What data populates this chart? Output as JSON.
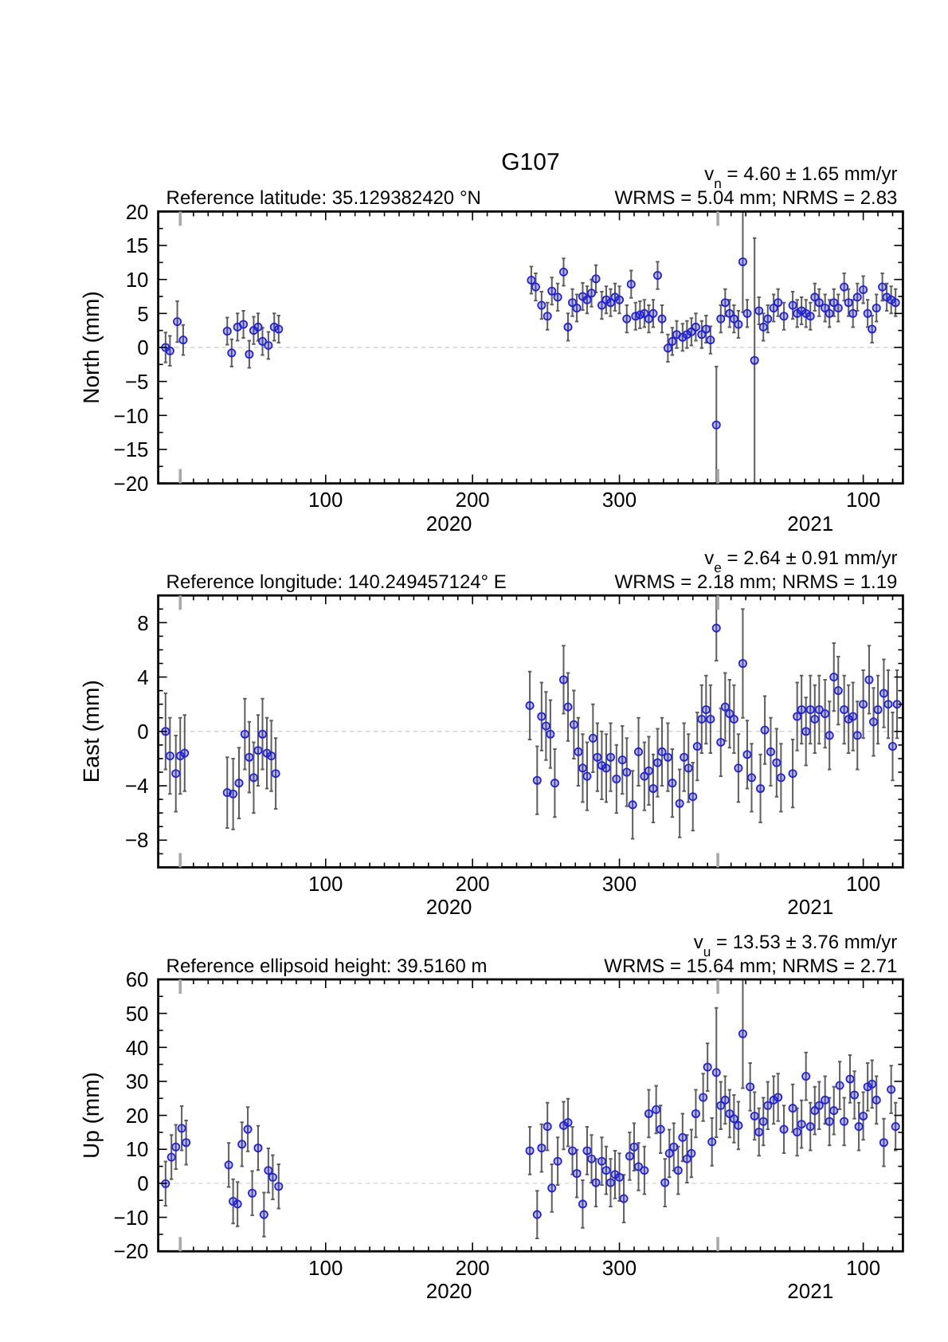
{
  "chart_data": [
    {
      "type": "scatter",
      "title": "G107",
      "subtitle": "Reference latitude: 35.129382420 °N",
      "annotations": [
        "v$_{n}$ = 4.60 ± 1.65 mm/yr",
        "WRMS = 5.04 mm; NRMS = 2.83",
        "2020",
        "2021"
      ],
      "ylabel": "North (mm)",
      "marker": "circle",
      "xlim": [
        "2019-12-17",
        "2021-05-07"
      ],
      "xticks": [
        {
          "value": "2020-01-01",
          "label": null
        },
        {
          "value": "2020-01-10",
          "label": null
        },
        {
          "value": "2020-01-20",
          "label": null
        },
        {
          "value": "2020-01-30",
          "label": null
        },
        {
          "value": "2020-02-09",
          "label": null
        },
        {
          "value": "2020-02-19",
          "label": null
        },
        {
          "value": "2020-02-29",
          "label": null
        },
        {
          "value": "2020-03-10",
          "label": null
        },
        {
          "value": "2020-03-20",
          "label": null
        },
        {
          "value": "2020-03-30",
          "label": null
        },
        {
          "value": "2020-04-09",
          "label": "100"
        },
        {
          "value": "2020-04-19",
          "label": null
        },
        {
          "value": "2020-04-29",
          "label": null
        },
        {
          "value": "2020-05-09",
          "label": null
        },
        {
          "value": "2020-05-19",
          "label": null
        },
        {
          "value": "2020-05-29",
          "label": null
        },
        {
          "value": "2020-06-08",
          "label": null
        },
        {
          "value": "2020-06-18",
          "label": null
        },
        {
          "value": "2020-06-28",
          "label": null
        },
        {
          "value": "2020-07-08",
          "label": null
        },
        {
          "value": "2020-07-18",
          "label": "200"
        },
        {
          "value": "2020-07-28",
          "label": null
        },
        {
          "value": "2020-08-07",
          "label": null
        },
        {
          "value": "2020-08-17",
          "label": null
        },
        {
          "value": "2020-08-27",
          "label": null
        },
        {
          "value": "2020-09-06",
          "label": null
        },
        {
          "value": "2020-09-16",
          "label": null
        },
        {
          "value": "2020-09-26",
          "label": null
        },
        {
          "value": "2020-10-06",
          "label": null
        },
        {
          "value": "2020-10-16",
          "label": null
        },
        {
          "value": "2020-10-26",
          "label": "300"
        },
        {
          "value": "2020-11-05",
          "label": null
        },
        {
          "value": "2020-11-15",
          "label": null
        },
        {
          "value": "2020-11-25",
          "label": null
        },
        {
          "value": "2020-12-05",
          "label": null
        },
        {
          "value": "2020-12-15",
          "label": null
        },
        {
          "value": "2020-12-25",
          "label": null
        },
        {
          "value": "2021-01-01",
          "label": null
        },
        {
          "value": "2021-01-10",
          "label": null
        },
        {
          "value": "2021-01-20",
          "label": null
        },
        {
          "value": "2021-01-30",
          "label": null
        },
        {
          "value": "2021-02-09",
          "label": null
        },
        {
          "value": "2021-02-19",
          "label": null
        },
        {
          "value": "2021-03-01",
          "label": null
        },
        {
          "value": "2021-03-11",
          "label": null
        },
        {
          "value": "2021-03-21",
          "label": null
        },
        {
          "value": "2021-03-31",
          "label": null
        },
        {
          "value": "2021-04-10",
          "label": "100"
        },
        {
          "value": "2021-04-20",
          "label": null
        },
        {
          "value": "2021-04-30",
          "label": null
        }
      ],
      "ylim": [
        -20,
        20
      ],
      "yticks": [
        -20,
        {
          "value": -17.5,
          "label": null
        },
        -15,
        {
          "value": -12.5,
          "label": null
        },
        -10,
        {
          "value": -7.5,
          "label": null
        },
        -5,
        {
          "value": -2.5,
          "label": null
        },
        0,
        {
          "value": 2.5,
          "label": null
        },
        5,
        {
          "value": 7.5,
          "label": null
        },
        10,
        {
          "value": 12.5,
          "label": null
        },
        15,
        {
          "value": 17.5,
          "label": null
        },
        20
      ],
      "ref_lines": [
        {
          "axis": "y",
          "value": 0,
          "color": "#d4d4d4",
          "line_style": "dashed"
        }
      ],
      "series": [
        {
          "color": "#1f1fe0",
          "x": [
            "2019-12-22",
            "2019-12-25",
            "2019-12-30",
            "2020-01-03",
            "2020-02-02",
            "2020-02-05",
            "2020-02-09",
            "2020-02-13",
            "2020-02-17",
            "2020-02-20",
            "2020-02-23",
            "2020-02-26",
            "2020-03-01",
            "2020-03-05",
            "2020-03-08",
            "2020-08-27",
            "2020-08-30",
            "2020-09-03",
            "2020-09-07",
            "2020-09-10",
            "2020-09-14",
            "2020-09-18",
            "2020-09-21",
            "2020-09-24",
            "2020-09-27",
            "2020-10-01",
            "2020-10-04",
            "2020-10-07",
            "2020-10-10",
            "2020-10-14",
            "2020-10-17",
            "2020-10-20",
            "2020-10-23",
            "2020-10-26",
            "2020-10-31",
            "2020-11-03",
            "2020-11-06",
            "2020-11-09",
            "2020-11-12",
            "2020-11-15",
            "2020-11-18",
            "2020-11-21",
            "2020-11-24",
            "2020-11-28",
            "2020-12-01",
            "2020-12-04",
            "2020-12-08",
            "2020-12-11",
            "2020-12-14",
            "2020-12-17",
            "2020-12-21",
            "2020-12-24",
            "2020-12-27",
            "2020-12-31",
            "2021-01-03",
            "2021-01-06",
            "2021-01-09",
            "2021-01-12",
            "2021-01-15",
            "2021-01-18",
            "2021-01-21",
            "2021-01-26",
            "2021-01-29",
            "2021-02-01",
            "2021-02-04",
            "2021-02-08",
            "2021-02-11",
            "2021-02-15",
            "2021-02-21",
            "2021-02-24",
            "2021-02-27",
            "2021-03-02",
            "2021-03-05",
            "2021-03-08",
            "2021-03-11",
            "2021-03-15",
            "2021-03-18",
            "2021-03-21",
            "2021-03-24",
            "2021-03-28",
            "2021-03-31",
            "2021-04-03",
            "2021-04-06",
            "2021-04-10",
            "2021-04-13",
            "2021-04-16",
            "2021-04-19",
            "2021-04-23",
            "2021-04-26",
            "2021-04-29",
            "2021-05-02"
          ],
          "values": [
            0,
            -0.5,
            3.8,
            1.1,
            2.4,
            -0.8,
            3,
            3.4,
            -1,
            2.5,
            3,
            0.9,
            0.3,
            3,
            2.7,
            9.9,
            8.9,
            6.2,
            4.6,
            8.3,
            7.4,
            11.1,
            3,
            6.6,
            5.8,
            7.5,
            7,
            8,
            10.1,
            6.2,
            7,
            6.6,
            7.4,
            7,
            4.2,
            9.3,
            4.6,
            4.8,
            5,
            4.2,
            5,
            10.6,
            4.2,
            -0.1,
            0.9,
            1.9,
            1.5,
            1.9,
            2.3,
            3,
            1.9,
            2.7,
            1.1,
            -11.4,
            4.2,
            6.6,
            5,
            4.2,
            3.4,
            12.6,
            5,
            -1.9,
            5.4,
            3,
            4.2,
            5.8,
            6.6,
            4.6,
            6.2,
            5,
            5.4,
            5,
            4.6,
            7.4,
            6.6,
            5.8,
            5,
            6.6,
            5.8,
            8.9,
            6.6,
            5,
            7.4,
            8.5,
            5,
            2.7,
            5.8,
            8.9,
            7.4,
            7,
            6.6
          ],
          "errors": [
            2.2,
            2.2,
            3,
            2.2,
            2,
            2,
            2,
            2,
            2,
            2,
            2,
            2,
            2,
            2,
            2,
            2,
            2,
            2,
            2,
            2,
            2,
            2,
            2,
            2,
            2,
            2,
            2,
            2,
            2,
            2,
            2,
            2,
            2,
            2,
            2,
            2,
            2,
            2,
            2,
            2,
            2,
            2,
            2,
            2,
            2,
            2,
            2,
            2,
            2,
            2,
            2,
            2,
            2,
            8.6,
            2,
            2,
            2,
            2,
            2,
            7.4,
            2,
            18,
            2,
            2,
            2,
            2,
            2,
            2,
            2,
            2,
            2,
            2,
            2,
            2,
            2,
            2,
            2,
            2,
            2,
            2,
            2,
            2,
            2,
            2,
            2,
            2,
            2,
            2,
            2,
            2,
            2
          ]
        }
      ]
    },
    {
      "type": "scatter",
      "subtitle": "Reference longitude: 140.249457124° E",
      "annotations": [
        "v$_{e}$ = 2.64 ± 0.91 mm/yr",
        "WRMS = 2.18 mm; NRMS = 1.19",
        "2020",
        "2021"
      ],
      "ylabel": "East (mm)",
      "marker": "circle",
      "xlim": [
        "2019-12-17",
        "2021-05-07"
      ],
      "xticks": [
        {
          "value": "2020-01-01",
          "label": null
        },
        {
          "value": "2020-01-10",
          "label": null
        },
        {
          "value": "2020-01-20",
          "label": null
        },
        {
          "value": "2020-01-30",
          "label": null
        },
        {
          "value": "2020-02-09",
          "label": null
        },
        {
          "value": "2020-02-19",
          "label": null
        },
        {
          "value": "2020-02-29",
          "label": null
        },
        {
          "value": "2020-03-10",
          "label": null
        },
        {
          "value": "2020-03-20",
          "label": null
        },
        {
          "value": "2020-03-30",
          "label": null
        },
        {
          "value": "2020-04-09",
          "label": "100"
        },
        {
          "value": "2020-04-19",
          "label": null
        },
        {
          "value": "2020-04-29",
          "label": null
        },
        {
          "value": "2020-05-09",
          "label": null
        },
        {
          "value": "2020-05-19",
          "label": null
        },
        {
          "value": "2020-05-29",
          "label": null
        },
        {
          "value": "2020-06-08",
          "label": null
        },
        {
          "value": "2020-06-18",
          "label": null
        },
        {
          "value": "2020-06-28",
          "label": null
        },
        {
          "value": "2020-07-08",
          "label": null
        },
        {
          "value": "2020-07-18",
          "label": "200"
        },
        {
          "value": "2020-07-28",
          "label": null
        },
        {
          "value": "2020-08-07",
          "label": null
        },
        {
          "value": "2020-08-17",
          "label": null
        },
        {
          "value": "2020-08-27",
          "label": null
        },
        {
          "value": "2020-09-06",
          "label": null
        },
        {
          "value": "2020-09-16",
          "label": null
        },
        {
          "value": "2020-09-26",
          "label": null
        },
        {
          "value": "2020-10-06",
          "label": null
        },
        {
          "value": "2020-10-16",
          "label": null
        },
        {
          "value": "2020-10-26",
          "label": "300"
        },
        {
          "value": "2020-11-05",
          "label": null
        },
        {
          "value": "2020-11-15",
          "label": null
        },
        {
          "value": "2020-11-25",
          "label": null
        },
        {
          "value": "2020-12-05",
          "label": null
        },
        {
          "value": "2020-12-15",
          "label": null
        },
        {
          "value": "2020-12-25",
          "label": null
        },
        {
          "value": "2021-01-01",
          "label": null
        },
        {
          "value": "2021-01-10",
          "label": null
        },
        {
          "value": "2021-01-20",
          "label": null
        },
        {
          "value": "2021-01-30",
          "label": null
        },
        {
          "value": "2021-02-09",
          "label": null
        },
        {
          "value": "2021-02-19",
          "label": null
        },
        {
          "value": "2021-03-01",
          "label": null
        },
        {
          "value": "2021-03-11",
          "label": null
        },
        {
          "value": "2021-03-21",
          "label": null
        },
        {
          "value": "2021-03-31",
          "label": null
        },
        {
          "value": "2021-04-10",
          "label": "100"
        },
        {
          "value": "2021-04-20",
          "label": null
        },
        {
          "value": "2021-04-30",
          "label": null
        }
      ],
      "ylim": [
        -10,
        10
      ],
      "yticks": [
        {
          "value": -9,
          "label": null
        },
        -8,
        {
          "value": -7,
          "label": null
        },
        {
          "value": -6,
          "label": null
        },
        {
          "value": -5,
          "label": null
        },
        -4,
        {
          "value": -3,
          "label": null
        },
        {
          "value": -2,
          "label": null
        },
        {
          "value": -1,
          "label": null
        },
        0,
        {
          "value": 1,
          "label": null
        },
        {
          "value": 2,
          "label": null
        },
        {
          "value": 3,
          "label": null
        },
        4,
        {
          "value": 5,
          "label": null
        },
        {
          "value": 6,
          "label": null
        },
        {
          "value": 7,
          "label": null
        },
        8,
        {
          "value": 9,
          "label": null
        }
      ],
      "ref_lines": [
        {
          "axis": "y",
          "value": 0,
          "color": "#d4d4d4",
          "line_style": "dashed"
        }
      ],
      "series": [
        {
          "color": "#1f1fe0",
          "x": [
            "2019-12-22",
            "2019-12-25",
            "2019-12-29",
            "2020-01-01",
            "2020-01-04",
            "2020-02-02",
            "2020-02-06",
            "2020-02-10",
            "2020-02-14",
            "2020-02-17",
            "2020-02-20",
            "2020-02-23",
            "2020-02-26",
            "2020-02-29",
            "2020-03-03",
            "2020-03-06",
            "2020-08-26",
            "2020-08-31",
            "2020-09-03",
            "2020-09-06",
            "2020-09-09",
            "2020-09-12",
            "2020-09-18",
            "2020-09-21",
            "2020-09-25",
            "2020-09-28",
            "2020-10-01",
            "2020-10-04",
            "2020-10-08",
            "2020-10-11",
            "2020-10-14",
            "2020-10-17",
            "2020-10-20",
            "2020-10-24",
            "2020-10-28",
            "2020-10-31",
            "2020-11-04",
            "2020-11-08",
            "2020-11-12",
            "2020-11-15",
            "2020-11-18",
            "2020-11-21",
            "2020-11-24",
            "2020-11-28",
            "2020-12-01",
            "2020-12-06",
            "2020-12-09",
            "2020-12-12",
            "2020-12-15",
            "2020-12-18",
            "2020-12-21",
            "2020-12-24",
            "2020-12-27",
            "2020-12-31",
            "2021-01-03",
            "2021-01-06",
            "2021-01-09",
            "2021-01-12",
            "2021-01-15",
            "2021-01-18",
            "2021-01-21",
            "2021-01-24",
            "2021-01-30",
            "2021-02-02",
            "2021-02-06",
            "2021-02-10",
            "2021-02-13",
            "2021-02-21",
            "2021-02-24",
            "2021-02-27",
            "2021-03-02",
            "2021-03-05",
            "2021-03-08",
            "2021-03-11",
            "2021-03-15",
            "2021-03-18",
            "2021-03-21",
            "2021-03-24",
            "2021-03-28",
            "2021-03-31",
            "2021-04-03",
            "2021-04-06",
            "2021-04-10",
            "2021-04-14",
            "2021-04-17",
            "2021-04-20",
            "2021-04-24",
            "2021-04-27",
            "2021-04-30",
            "2021-05-03"
          ],
          "values": [
            0,
            -1.8,
            -3.1,
            -1.8,
            -1.6,
            -4.5,
            -4.6,
            -3.8,
            -0.2,
            -1.9,
            -3.4,
            -1.4,
            -0.2,
            -1.6,
            -1.8,
            -3.1,
            1.9,
            -3.6,
            1.1,
            0.4,
            -0.2,
            -3.8,
            3.8,
            1.8,
            0.5,
            -1.5,
            -2.7,
            -3.3,
            -0.5,
            -1.9,
            -2.5,
            -2.7,
            -1.9,
            -3.5,
            -2.1,
            -3,
            -5.4,
            -1.5,
            -3.3,
            -2.9,
            -4.2,
            -2.3,
            -1.5,
            -1.9,
            -3.8,
            -5.3,
            -1.9,
            -2.7,
            -4.8,
            -1.1,
            0.9,
            1.6,
            0.9,
            7.6,
            -0.8,
            1.8,
            1.3,
            0.9,
            -2.7,
            5,
            -1.7,
            -3.4,
            -4.2,
            0.1,
            -1.5,
            -2.3,
            -3.4,
            -3.1,
            1.1,
            1.6,
            0,
            1.6,
            0.9,
            1.6,
            1.3,
            -0.3,
            4,
            3,
            1.6,
            0.9,
            1.1,
            -0.3,
            2,
            3.8,
            0.7,
            1.6,
            2.8,
            2,
            -1.1,
            2
          ],
          "errors": [
            2.8,
            2.8,
            2.8,
            2.8,
            2.8,
            2.6,
            2.6,
            2.6,
            2.6,
            2.6,
            2.6,
            2.6,
            2.6,
            2.6,
            2.6,
            2.6,
            2.5,
            2.5,
            2.5,
            2.5,
            2.5,
            2.5,
            2.5,
            2.5,
            2.5,
            2.5,
            2.5,
            2.5,
            2.5,
            2.5,
            2.5,
            2.5,
            2.5,
            2.5,
            2.5,
            2.5,
            2.5,
            2.5,
            2.5,
            2.5,
            2.5,
            2.5,
            2.5,
            2.5,
            2.5,
            2.5,
            2.5,
            2.5,
            2.5,
            2.5,
            2.5,
            2.5,
            2.5,
            2.4,
            2.5,
            2.5,
            2.5,
            2.5,
            2.5,
            4,
            2.5,
            2.5,
            2.5,
            2.5,
            2.5,
            2.5,
            2.5,
            2.5,
            2.5,
            2.5,
            2.5,
            2.5,
            2.5,
            2.5,
            2.5,
            2.5,
            2.5,
            2.5,
            2.5,
            2.5,
            2.5,
            2.5,
            2.5,
            2.5,
            2.5,
            2.5,
            2.5,
            2.5,
            2.5,
            2.5
          ]
        }
      ]
    },
    {
      "type": "scatter",
      "subtitle": "Reference ellipsoid height: 39.5160 m",
      "annotations": [
        "v$_{u}$ = 13.53 ± 3.76 mm/yr",
        "WRMS = 15.64 mm; NRMS = 2.71",
        "2020",
        "2021"
      ],
      "ylabel": "Up (mm)",
      "marker": "circle",
      "xlim": [
        "2019-12-17",
        "2021-05-07"
      ],
      "xticks": [
        {
          "value": "2020-01-01",
          "label": null
        },
        {
          "value": "2020-01-10",
          "label": null
        },
        {
          "value": "2020-01-20",
          "label": null
        },
        {
          "value": "2020-01-30",
          "label": null
        },
        {
          "value": "2020-02-09",
          "label": null
        },
        {
          "value": "2020-02-19",
          "label": null
        },
        {
          "value": "2020-02-29",
          "label": null
        },
        {
          "value": "2020-03-10",
          "label": null
        },
        {
          "value": "2020-03-20",
          "label": null
        },
        {
          "value": "2020-03-30",
          "label": null
        },
        {
          "value": "2020-04-09",
          "label": "100"
        },
        {
          "value": "2020-04-19",
          "label": null
        },
        {
          "value": "2020-04-29",
          "label": null
        },
        {
          "value": "2020-05-09",
          "label": null
        },
        {
          "value": "2020-05-19",
          "label": null
        },
        {
          "value": "2020-05-29",
          "label": null
        },
        {
          "value": "2020-06-08",
          "label": null
        },
        {
          "value": "2020-06-18",
          "label": null
        },
        {
          "value": "2020-06-28",
          "label": null
        },
        {
          "value": "2020-07-08",
          "label": null
        },
        {
          "value": "2020-07-18",
          "label": "200"
        },
        {
          "value": "2020-07-28",
          "label": null
        },
        {
          "value": "2020-08-07",
          "label": null
        },
        {
          "value": "2020-08-17",
          "label": null
        },
        {
          "value": "2020-08-27",
          "label": null
        },
        {
          "value": "2020-09-06",
          "label": null
        },
        {
          "value": "2020-09-16",
          "label": null
        },
        {
          "value": "2020-09-26",
          "label": null
        },
        {
          "value": "2020-10-06",
          "label": null
        },
        {
          "value": "2020-10-16",
          "label": null
        },
        {
          "value": "2020-10-26",
          "label": "300"
        },
        {
          "value": "2020-11-05",
          "label": null
        },
        {
          "value": "2020-11-15",
          "label": null
        },
        {
          "value": "2020-11-25",
          "label": null
        },
        {
          "value": "2020-12-05",
          "label": null
        },
        {
          "value": "2020-12-15",
          "label": null
        },
        {
          "value": "2020-12-25",
          "label": null
        },
        {
          "value": "2021-01-01",
          "label": null
        },
        {
          "value": "2021-01-10",
          "label": null
        },
        {
          "value": "2021-01-20",
          "label": null
        },
        {
          "value": "2021-01-30",
          "label": null
        },
        {
          "value": "2021-02-09",
          "label": null
        },
        {
          "value": "2021-02-19",
          "label": null
        },
        {
          "value": "2021-03-01",
          "label": null
        },
        {
          "value": "2021-03-11",
          "label": null
        },
        {
          "value": "2021-03-21",
          "label": null
        },
        {
          "value": "2021-03-31",
          "label": null
        },
        {
          "value": "2021-04-10",
          "label": "100"
        },
        {
          "value": "2021-04-20",
          "label": null
        },
        {
          "value": "2021-04-30",
          "label": null
        }
      ],
      "ylim": [
        -20,
        60
      ],
      "yticks": [
        -20,
        {
          "value": -15,
          "label": null
        },
        -10,
        {
          "value": -5,
          "label": null
        },
        0,
        {
          "value": 5,
          "label": null
        },
        10,
        {
          "value": 15,
          "label": null
        },
        20,
        {
          "value": 25,
          "label": null
        },
        30,
        {
          "value": 35,
          "label": null
        },
        40,
        {
          "value": 45,
          "label": null
        },
        50,
        {
          "value": 55,
          "label": null
        },
        60
      ],
      "ref_lines": [
        {
          "axis": "y",
          "value": 0,
          "color": "#d4d4d4",
          "line_style": "dashed"
        }
      ],
      "series": [
        {
          "color": "#1f1fe0",
          "x": [
            "2019-12-22",
            "2019-12-26",
            "2019-12-29",
            "2020-01-02",
            "2020-01-05",
            "2020-02-03",
            "2020-02-06",
            "2020-02-09",
            "2020-02-12",
            "2020-02-16",
            "2020-02-19",
            "2020-02-23",
            "2020-02-27",
            "2020-03-01",
            "2020-03-04",
            "2020-03-08",
            "2020-08-26",
            "2020-08-31",
            "2020-09-03",
            "2020-09-07",
            "2020-09-10",
            "2020-09-14",
            "2020-09-18",
            "2020-09-21",
            "2020-09-24",
            "2020-09-27",
            "2020-10-01",
            "2020-10-04",
            "2020-10-07",
            "2020-10-10",
            "2020-10-14",
            "2020-10-17",
            "2020-10-20",
            "2020-10-23",
            "2020-10-26",
            "2020-10-29",
            "2020-11-02",
            "2020-11-05",
            "2020-11-08",
            "2020-11-12",
            "2020-11-15",
            "2020-11-20",
            "2020-11-23",
            "2020-11-26",
            "2020-11-29",
            "2020-12-02",
            "2020-12-05",
            "2020-12-08",
            "2020-12-11",
            "2020-12-14",
            "2020-12-17",
            "2020-12-22",
            "2020-12-25",
            "2020-12-28",
            "2020-12-31",
            "2021-01-03",
            "2021-01-06",
            "2021-01-09",
            "2021-01-12",
            "2021-01-15",
            "2021-01-18",
            "2021-01-23",
            "2021-01-26",
            "2021-01-29",
            "2021-02-01",
            "2021-02-04",
            "2021-02-08",
            "2021-02-11",
            "2021-02-15",
            "2021-02-21",
            "2021-02-24",
            "2021-02-27",
            "2021-03-02",
            "2021-03-05",
            "2021-03-08",
            "2021-03-11",
            "2021-03-15",
            "2021-03-18",
            "2021-03-21",
            "2021-03-25",
            "2021-03-28",
            "2021-04-01",
            "2021-04-04",
            "2021-04-07",
            "2021-04-10",
            "2021-04-13",
            "2021-04-16",
            "2021-04-19",
            "2021-04-24",
            "2021-04-29",
            "2021-05-02"
          ],
          "values": [
            -0.1,
            7.7,
            10.7,
            16.2,
            12,
            5.4,
            -5.3,
            -6.1,
            11.5,
            15.9,
            -2.9,
            10.4,
            -9.2,
            3.8,
            1.8,
            -0.9,
            9.6,
            -9.2,
            10.4,
            16.7,
            -1.4,
            6.5,
            17,
            17.9,
            9.6,
            2.9,
            -6.1,
            9.6,
            7.2,
            0.2,
            6.5,
            3.8,
            0.2,
            2.6,
            1.8,
            -4.5,
            8,
            10.7,
            4.9,
            3.8,
            20.5,
            21.7,
            15.9,
            0.2,
            8.8,
            10.7,
            3.8,
            13.5,
            7.2,
            8.8,
            20.5,
            25.3,
            34.2,
            12.2,
            32.6,
            22.9,
            24.5,
            20.5,
            19,
            17,
            44,
            28.4,
            19.8,
            15.1,
            18.2,
            22.9,
            24.5,
            25.3,
            15.9,
            22.1,
            15.1,
            17.4,
            31.5,
            16.7,
            21.4,
            22.9,
            24.5,
            18.2,
            21.4,
            28.8,
            18.2,
            30.7,
            26,
            16.7,
            19.8,
            28.4,
            29.2,
            24.5,
            12,
            27.6,
            16.7
          ],
          "errors": [
            6.5,
            6.5,
            6.5,
            6.5,
            6.5,
            6.5,
            6.5,
            6.5,
            6.5,
            6.5,
            6.5,
            6.5,
            6.5,
            6.5,
            6.5,
            6.5,
            7,
            7,
            7,
            7,
            7,
            7,
            7,
            7,
            7,
            7,
            7,
            7,
            7,
            7,
            7,
            7,
            7,
            7,
            7,
            7,
            7,
            7,
            7,
            7,
            7,
            7,
            7,
            7,
            7,
            7,
            7,
            7,
            7,
            7,
            7,
            7,
            7,
            7,
            19,
            7,
            7,
            7,
            7,
            7,
            16,
            7,
            7,
            7,
            7,
            7,
            7,
            7,
            7,
            7,
            7,
            7,
            7,
            7,
            7,
            7,
            7,
            7,
            7,
            7,
            7,
            7,
            7,
            7,
            7,
            7,
            7,
            7,
            7,
            7,
            7
          ]
        }
      ]
    }
  ]
}
